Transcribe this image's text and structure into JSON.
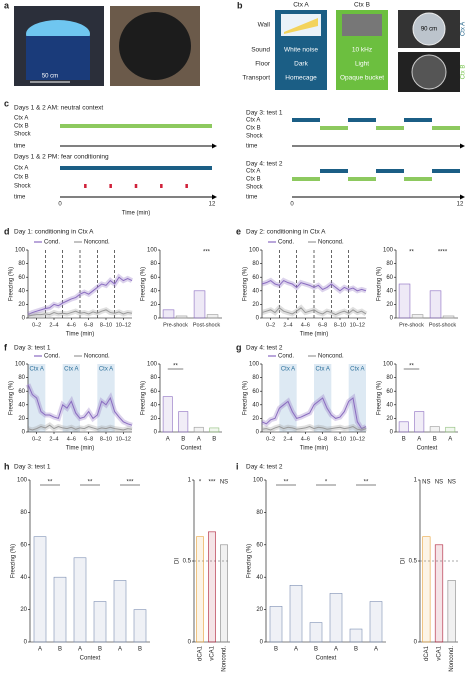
{
  "panel_labels": [
    "a",
    "b",
    "c",
    "d",
    "e",
    "f",
    "g",
    "h",
    "i"
  ],
  "panel_a": {
    "scale": "50 cm"
  },
  "panel_b": {
    "rows": [
      "Wall",
      "Sound",
      "Floor",
      "Transport"
    ],
    "ctx_a": {
      "title": "Ctx A",
      "cells": [
        "White noise",
        "Dark",
        "Homecage"
      ]
    },
    "ctx_b": {
      "title": "Ctx B",
      "cells": [
        "10 kHz",
        "Light",
        "Opaque bucket"
      ]
    },
    "photo_scale": "90 cm",
    "photo_labels": [
      "Ctx A",
      "Ctx B"
    ]
  },
  "panel_c": {
    "blocks": [
      {
        "title": "Days 1 & 2 AM: neutral context",
        "rows": [
          "Ctx A",
          "Ctx B",
          "Shock",
          "time"
        ]
      },
      {
        "title": "Days 1 & 2 PM: fear conditioning",
        "rows": [
          "Ctx A",
          "Ctx B",
          "Shock",
          "time"
        ]
      },
      {
        "title": "Day 3: test 1",
        "rows": [
          "Ctx A",
          "Ctx B",
          "Shock",
          "time"
        ]
      },
      {
        "title": "Day 4: test 2",
        "rows": [
          "Ctx A",
          "Ctx B",
          "Shock",
          "time"
        ]
      }
    ],
    "axis_labels": [
      "0",
      "12"
    ],
    "axis_title": "Time (min)"
  },
  "chart_data": [
    {
      "type": "line",
      "title": "Day 1: conditioning in Ctx A",
      "xlabel": "Time (min)",
      "ylabel": "Freezing (%)",
      "x": [
        0,
        0.5,
        1,
        1.5,
        2,
        2.5,
        3,
        3.5,
        4,
        4.5,
        5,
        5.5,
        6,
        6.5,
        7,
        7.5,
        8,
        8.5,
        9,
        9.5,
        10,
        10.5,
        11,
        11.5,
        12
      ],
      "xlim": [
        0,
        12
      ],
      "xticks": [
        {
          "value": 1,
          "label": "0–2"
        },
        {
          "value": 3,
          "label": "2–4"
        },
        {
          "value": 5,
          "label": "4–6"
        },
        {
          "value": 7,
          "label": "6–8"
        },
        {
          "value": 9,
          "label": "8–10"
        },
        {
          "value": 11,
          "label": "10–12"
        }
      ],
      "ylim": [
        0,
        100
      ],
      "yticks": [
        0,
        20,
        40,
        60,
        80,
        100
      ],
      "vlines": [
        2,
        4,
        6,
        8,
        10
      ],
      "series": [
        {
          "name": "Cond.",
          "color": "#8a6cc0",
          "values": [
            5,
            8,
            10,
            12,
            14,
            15,
            20,
            18,
            22,
            25,
            28,
            30,
            35,
            38,
            35,
            40,
            45,
            50,
            48,
            55,
            50,
            60,
            55,
            58,
            55
          ]
        },
        {
          "name": "Noncond.",
          "color": "#999999",
          "values": [
            3,
            4,
            5,
            5,
            6,
            5,
            8,
            6,
            7,
            6,
            8,
            10,
            7,
            8,
            6,
            9,
            7,
            10,
            12,
            8,
            7,
            9,
            6,
            8,
            7
          ]
        }
      ]
    },
    {
      "type": "bar",
      "categories": [
        "Pre-shock",
        "Post-shock"
      ],
      "ylim": [
        0,
        100
      ],
      "yticks": [
        0,
        20,
        40,
        60,
        80,
        100
      ],
      "ylabel": "Freezing (%)",
      "series": [
        {
          "name": "Cond.",
          "color": "#8a6cc0",
          "values": [
            12,
            40
          ]
        },
        {
          "name": "Noncond.",
          "color": "#999999",
          "values": [
            3,
            5
          ]
        }
      ],
      "significance": [
        null,
        "***"
      ]
    },
    {
      "type": "line",
      "title": "Day 2: conditioning in Ctx A",
      "xlabel": "Time (min)",
      "ylabel": "Freezing (%)",
      "x": [
        0,
        0.5,
        1,
        1.5,
        2,
        2.5,
        3,
        3.5,
        4,
        4.5,
        5,
        5.5,
        6,
        6.5,
        7,
        7.5,
        8,
        8.5,
        9,
        9.5,
        10,
        10.5,
        11,
        11.5,
        12
      ],
      "xlim": [
        0,
        12
      ],
      "xticks": [
        {
          "value": 1,
          "label": "0–2"
        },
        {
          "value": 3,
          "label": "2–4"
        },
        {
          "value": 5,
          "label": "4–6"
        },
        {
          "value": 7,
          "label": "6–8"
        },
        {
          "value": 9,
          "label": "8–10"
        },
        {
          "value": 11,
          "label": "10–12"
        }
      ],
      "ylim": [
        0,
        100
      ],
      "yticks": [
        0,
        20,
        40,
        60,
        80,
        100
      ],
      "vlines": [
        2,
        4,
        6,
        8,
        10
      ],
      "series": [
        {
          "name": "Cond.",
          "color": "#8a6cc0",
          "values": [
            50,
            52,
            55,
            50,
            48,
            55,
            52,
            50,
            45,
            52,
            50,
            48,
            45,
            48,
            42,
            45,
            50,
            45,
            40,
            45,
            42,
            44,
            40,
            42,
            40
          ]
        },
        {
          "name": "Noncond.",
          "color": "#999999",
          "values": [
            8,
            10,
            12,
            8,
            15,
            10,
            8,
            6,
            10,
            15,
            8,
            10,
            12,
            8,
            6,
            10,
            8,
            5,
            8,
            10,
            7,
            12,
            8,
            10,
            6
          ]
        }
      ]
    },
    {
      "type": "bar",
      "categories": [
        "Pre-shock",
        "Post-shock"
      ],
      "ylim": [
        0,
        100
      ],
      "yticks": [
        0,
        20,
        40,
        60,
        80,
        100
      ],
      "ylabel": "Freezing (%)",
      "series": [
        {
          "name": "Cond.",
          "color": "#8a6cc0",
          "values": [
            50,
            40
          ]
        },
        {
          "name": "Noncond.",
          "color": "#999999",
          "values": [
            5,
            3
          ]
        }
      ],
      "significance": [
        "**",
        "****"
      ]
    },
    {
      "type": "line",
      "title": "Day 3: test 1",
      "xlabel": "Time (min)",
      "ylabel": "Freezing (%)",
      "x": [
        0,
        0.5,
        1,
        1.5,
        2,
        2.5,
        3,
        3.5,
        4,
        4.5,
        5,
        5.5,
        6,
        6.5,
        7,
        7.5,
        8,
        8.5,
        9,
        9.5,
        10,
        10.5,
        11,
        11.5,
        12
      ],
      "xlim": [
        0,
        12
      ],
      "xticks": [
        {
          "value": 1,
          "label": "0–2"
        },
        {
          "value": 3,
          "label": "2–4"
        },
        {
          "value": 5,
          "label": "4–6"
        },
        {
          "value": 7,
          "label": "6–8"
        },
        {
          "value": 9,
          "label": "8–10"
        },
        {
          "value": 11,
          "label": "10–12"
        }
      ],
      "ylim": [
        0,
        100
      ],
      "yticks": [
        0,
        20,
        40,
        60,
        80,
        100
      ],
      "regions": [
        {
          "from": 0,
          "to": 2,
          "label": "Ctx A"
        },
        {
          "from": 4,
          "to": 6,
          "label": "Ctx A"
        },
        {
          "from": 8,
          "to": 10,
          "label": "Ctx A"
        }
      ],
      "series": [
        {
          "name": "Cond.",
          "color": "#8a6cc0",
          "values": [
            70,
            55,
            50,
            30,
            25,
            25,
            22,
            20,
            40,
            35,
            45,
            28,
            20,
            22,
            30,
            20,
            25,
            45,
            40,
            50,
            30,
            22,
            15,
            12,
            10
          ]
        },
        {
          "name": "Noncond.",
          "color": "#999999",
          "values": [
            5,
            3,
            5,
            8,
            6,
            10,
            5,
            8,
            6,
            5,
            7,
            4,
            6,
            5,
            8,
            6,
            4,
            6,
            5,
            7,
            5,
            4,
            3,
            5,
            4
          ]
        }
      ]
    },
    {
      "type": "bar",
      "categories": [
        "A",
        "B",
        "A",
        "B"
      ],
      "xlabel": "Context",
      "ylim": [
        0,
        100
      ],
      "yticks": [
        0,
        20,
        40,
        60,
        80,
        100
      ],
      "ylabel": "Freezing (%)",
      "values": [
        52,
        30,
        7,
        6
      ],
      "colors": [
        "#8a6cc0",
        "#8a6cc0",
        "#999999",
        "#8fbf7a"
      ],
      "significance": [
        "**",
        null
      ]
    },
    {
      "type": "line",
      "title": "Day 4: test 2",
      "xlabel": "Time (min)",
      "ylabel": "Freezing (%)",
      "x": [
        0,
        0.5,
        1,
        1.5,
        2,
        2.5,
        3,
        3.5,
        4,
        4.5,
        5,
        5.5,
        6,
        6.5,
        7,
        7.5,
        8,
        8.5,
        9,
        9.5,
        10,
        10.5,
        11,
        11.5,
        12
      ],
      "xlim": [
        0,
        12
      ],
      "xticks": [
        {
          "value": 1,
          "label": "0–2"
        },
        {
          "value": 3,
          "label": "2–4"
        },
        {
          "value": 5,
          "label": "4–6"
        },
        {
          "value": 7,
          "label": "6–8"
        },
        {
          "value": 9,
          "label": "8–10"
        },
        {
          "value": 11,
          "label": "10–12"
        }
      ],
      "ylim": [
        0,
        100
      ],
      "yticks": [
        0,
        20,
        40,
        60,
        80,
        100
      ],
      "regions": [
        {
          "from": 2,
          "to": 4,
          "label": "Ctx A"
        },
        {
          "from": 6,
          "to": 8,
          "label": "Ctx A"
        },
        {
          "from": 10,
          "to": 12,
          "label": "Ctx A"
        }
      ],
      "series": [
        {
          "name": "Cond.",
          "color": "#8a6cc0",
          "values": [
            15,
            12,
            18,
            20,
            35,
            40,
            45,
            30,
            20,
            22,
            25,
            28,
            40,
            45,
            50,
            35,
            25,
            20,
            22,
            30,
            45,
            50,
            15,
            5,
            8
          ]
        },
        {
          "name": "Noncond.",
          "color": "#999999",
          "values": [
            4,
            5,
            3,
            6,
            8,
            5,
            7,
            6,
            4,
            5,
            6,
            8,
            5,
            7,
            6,
            4,
            5,
            6,
            7,
            5,
            6,
            8,
            4,
            3,
            5
          ]
        }
      ]
    },
    {
      "type": "bar",
      "categories": [
        "B",
        "A",
        "B",
        "A"
      ],
      "xlabel": "Context",
      "ylim": [
        0,
        100
      ],
      "yticks": [
        0,
        20,
        40,
        60,
        80,
        100
      ],
      "ylabel": "Freezing (%)",
      "values": [
        15,
        30,
        8,
        7
      ],
      "colors": [
        "#8a6cc0",
        "#8a6cc0",
        "#999999",
        "#8fbf7a"
      ],
      "significance": [
        "**",
        null
      ]
    },
    {
      "type": "bar",
      "title": "Day 3: test 1",
      "categories": [
        "A",
        "B",
        "A",
        "B",
        "A",
        "B"
      ],
      "xlabel": "Context",
      "ylim": [
        0,
        100
      ],
      "yticks": [
        0,
        20,
        40,
        60,
        80,
        100
      ],
      "ylabel": "Freezing (%)",
      "values": [
        65,
        40,
        52,
        25,
        38,
        20
      ],
      "colors": [
        "#7d8fb3",
        "#7d8fb3",
        "#7d8fb3",
        "#7d8fb3",
        "#7d8fb3",
        "#7d8fb3"
      ],
      "significance": [
        "**",
        "**",
        "***"
      ]
    },
    {
      "type": "bar",
      "categories": [
        "dCA1",
        "vCA1",
        "Noncond."
      ],
      "ylim": [
        0,
        1
      ],
      "yticks": [
        0,
        0.5,
        1
      ],
      "ylabel": "DI",
      "reference_line": 0.5,
      "values": [
        0.65,
        0.68,
        0.6
      ],
      "colors": [
        "#e8a33d",
        "#b0213a",
        "#888888"
      ],
      "significance": [
        "*",
        "***",
        "NS"
      ]
    },
    {
      "type": "bar",
      "title": "Day 4: test 2",
      "categories": [
        "B",
        "A",
        "B",
        "A",
        "B",
        "A"
      ],
      "xlabel": "Context",
      "ylim": [
        0,
        100
      ],
      "yticks": [
        0,
        20,
        40,
        60,
        80,
        100
      ],
      "ylabel": "Freezing (%)",
      "values": [
        22,
        35,
        12,
        30,
        8,
        25
      ],
      "colors": [
        "#7d8fb3",
        "#7d8fb3",
        "#7d8fb3",
        "#7d8fb3",
        "#7d8fb3",
        "#7d8fb3"
      ],
      "significance": [
        "**",
        "*",
        "**"
      ]
    },
    {
      "type": "bar",
      "categories": [
        "dCA1",
        "vCA1",
        "Noncond."
      ],
      "ylim": [
        0,
        1
      ],
      "yticks": [
        0,
        0.5,
        1
      ],
      "ylabel": "DI",
      "reference_line": 0.5,
      "values": [
        0.65,
        0.6,
        0.38
      ],
      "colors": [
        "#e8a33d",
        "#b0213a",
        "#888888"
      ],
      "significance": [
        "NS",
        "NS",
        "NS"
      ]
    }
  ]
}
